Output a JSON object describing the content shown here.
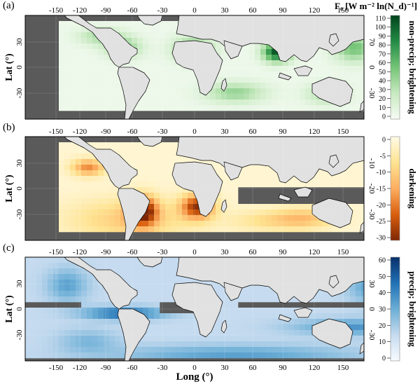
{
  "figure": {
    "y_axis_label": "Lat (°)",
    "x_axis_label": "Long (°)",
    "lon_ticks": [
      "-150",
      "-120",
      "-90",
      "-60",
      "-30",
      "0",
      "30",
      "60",
      "90",
      "120",
      "150"
    ],
    "lat_ticks": [
      "30",
      "0",
      "-30"
    ]
  },
  "panels": [
    {
      "id": "a",
      "letter": "(a)",
      "side_label": "non-precip; brightening",
      "colormap": "greens",
      "colors": [
        "#f7fcf5",
        "#c7e9c0",
        "#74c476",
        "#238b45",
        "#00441b"
      ],
      "colorbar_ticks": [
        "110",
        "100",
        "90",
        "80",
        "70",
        "60",
        "50",
        "40",
        "30",
        "20",
        "10",
        "0"
      ],
      "colorbar_range": [
        0,
        110
      ],
      "right_lat_ticks": [
        "70",
        "0",
        "-30"
      ]
    },
    {
      "id": "b",
      "letter": "(b)",
      "side_label": "darkening",
      "colormap": "oranges",
      "colors": [
        "#fffbe6",
        "#fee391",
        "#fdae61",
        "#d95f0e",
        "#7f2704"
      ],
      "colorbar_ticks": [
        "0",
        "-5",
        "-10",
        "-15",
        "-20",
        "-25",
        "-30"
      ],
      "colorbar_range": [
        -30,
        0
      ],
      "right_lat_ticks": [
        "-10",
        "-20",
        "-30"
      ]
    },
    {
      "id": "c",
      "letter": "(c)",
      "side_label": "precip; brightening",
      "colormap": "blues",
      "colors": [
        "#f7fbff",
        "#c6dbef",
        "#6baed6",
        "#2171b5",
        "#08306b"
      ],
      "colorbar_ticks": [
        "60",
        "50",
        "40",
        "30",
        "20",
        "10",
        "0"
      ],
      "colorbar_range": [
        0,
        60
      ],
      "right_lat_ticks": [
        "30",
        "0",
        "-30"
      ]
    }
  ],
  "colorbar_title": "F₀ [W m⁻² ln(N_d)⁻¹]",
  "colors": {
    "no_data": "#5a5a5a",
    "land": "#e1e1e1",
    "coast": "#000000"
  }
}
